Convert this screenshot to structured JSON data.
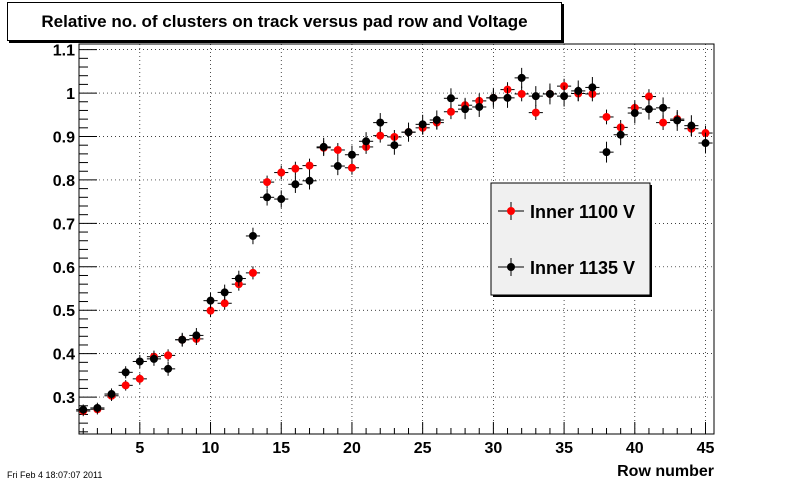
{
  "title": "Relative no. of clusters on track versus pad row and Voltage",
  "timestamp": "Fri Feb  4 18:07:07 2011",
  "chart_data": {
    "type": "scatter",
    "title": "Relative no. of clusters on track versus pad row and Voltage",
    "xlabel": "Row number",
    "ylabel": "",
    "xlim": [
      0.7,
      45.6
    ],
    "ylim": [
      0.215,
      1.113
    ],
    "xticks": [
      5,
      10,
      15,
      20,
      25,
      30,
      35,
      40,
      45
    ],
    "yticks": [
      0.3,
      0.4,
      0.5,
      0.6,
      0.7,
      0.8,
      0.9,
      1,
      1.1
    ],
    "grid": true,
    "legend_position": "right",
    "series": [
      {
        "name": "Inner 1100 V",
        "color": "#ff0000",
        "x": [
          1,
          2,
          3,
          4,
          5,
          6,
          7,
          8,
          9,
          10,
          11,
          12,
          13,
          14,
          15,
          16,
          17,
          18,
          19,
          20,
          21,
          22,
          23,
          24,
          25,
          26,
          27,
          28,
          29,
          30,
          31,
          32,
          33,
          34,
          35,
          36,
          37,
          38,
          39,
          40,
          41,
          42,
          43,
          44,
          45
        ],
        "y": [
          0.268,
          0.272,
          0.303,
          0.327,
          0.342,
          0.393,
          0.396,
          0.432,
          0.434,
          0.499,
          0.516,
          0.56,
          0.586,
          0.795,
          0.817,
          0.826,
          0.833,
          0.874,
          0.869,
          0.828,
          0.876,
          0.902,
          0.899,
          0.91,
          0.92,
          0.932,
          0.957,
          0.972,
          0.982,
          0.989,
          1.008,
          0.998,
          0.955,
          0.998,
          1.016,
          0.999,
          0.998,
          0.945,
          0.921,
          0.966,
          0.992,
          0.932,
          0.94,
          0.918,
          0.908
        ],
        "yerr": [
          0.012,
          0.012,
          0.012,
          0.012,
          0.012,
          0.014,
          0.014,
          0.014,
          0.014,
          0.015,
          0.015,
          0.015,
          0.015,
          0.015,
          0.016,
          0.016,
          0.016,
          0.016,
          0.016,
          0.016,
          0.016,
          0.016,
          0.016,
          0.016,
          0.016,
          0.016,
          0.017,
          0.017,
          0.017,
          0.017,
          0.017,
          0.017,
          0.017,
          0.017,
          0.017,
          0.017,
          0.017,
          0.017,
          0.017,
          0.017,
          0.017,
          0.017,
          0.017,
          0.017,
          0.017
        ]
      },
      {
        "name": "Inner 1135 V",
        "color": "#000000",
        "x": [
          1,
          2,
          3,
          4,
          5,
          6,
          7,
          8,
          9,
          10,
          11,
          12,
          13,
          14,
          15,
          16,
          17,
          18,
          19,
          20,
          21,
          22,
          23,
          24,
          25,
          26,
          27,
          28,
          29,
          30,
          31,
          32,
          33,
          34,
          35,
          36,
          37,
          38,
          39,
          40,
          41,
          42,
          43,
          44,
          45
        ],
        "y": [
          0.271,
          0.275,
          0.307,
          0.357,
          0.382,
          0.388,
          0.365,
          0.432,
          0.442,
          0.522,
          0.541,
          0.573,
          0.671,
          0.76,
          0.756,
          0.79,
          0.798,
          0.876,
          0.832,
          0.858,
          0.889,
          0.932,
          0.88,
          0.91,
          0.928,
          0.938,
          0.988,
          0.963,
          0.968,
          0.989,
          0.989,
          1.035,
          0.993,
          0.998,
          0.993,
          1.005,
          1.013,
          0.864,
          0.904,
          0.954,
          0.963,
          0.966,
          0.937,
          0.925,
          0.885
        ],
        "yerr": [
          0.012,
          0.012,
          0.013,
          0.014,
          0.015,
          0.016,
          0.016,
          0.016,
          0.017,
          0.018,
          0.018,
          0.018,
          0.019,
          0.019,
          0.02,
          0.02,
          0.02,
          0.021,
          0.021,
          0.021,
          0.021,
          0.022,
          0.022,
          0.022,
          0.022,
          0.022,
          0.023,
          0.023,
          0.023,
          0.023,
          0.023,
          0.023,
          0.023,
          0.024,
          0.024,
          0.024,
          0.024,
          0.024,
          0.024,
          0.024,
          0.024,
          0.024,
          0.024,
          0.024,
          0.024
        ]
      }
    ]
  }
}
